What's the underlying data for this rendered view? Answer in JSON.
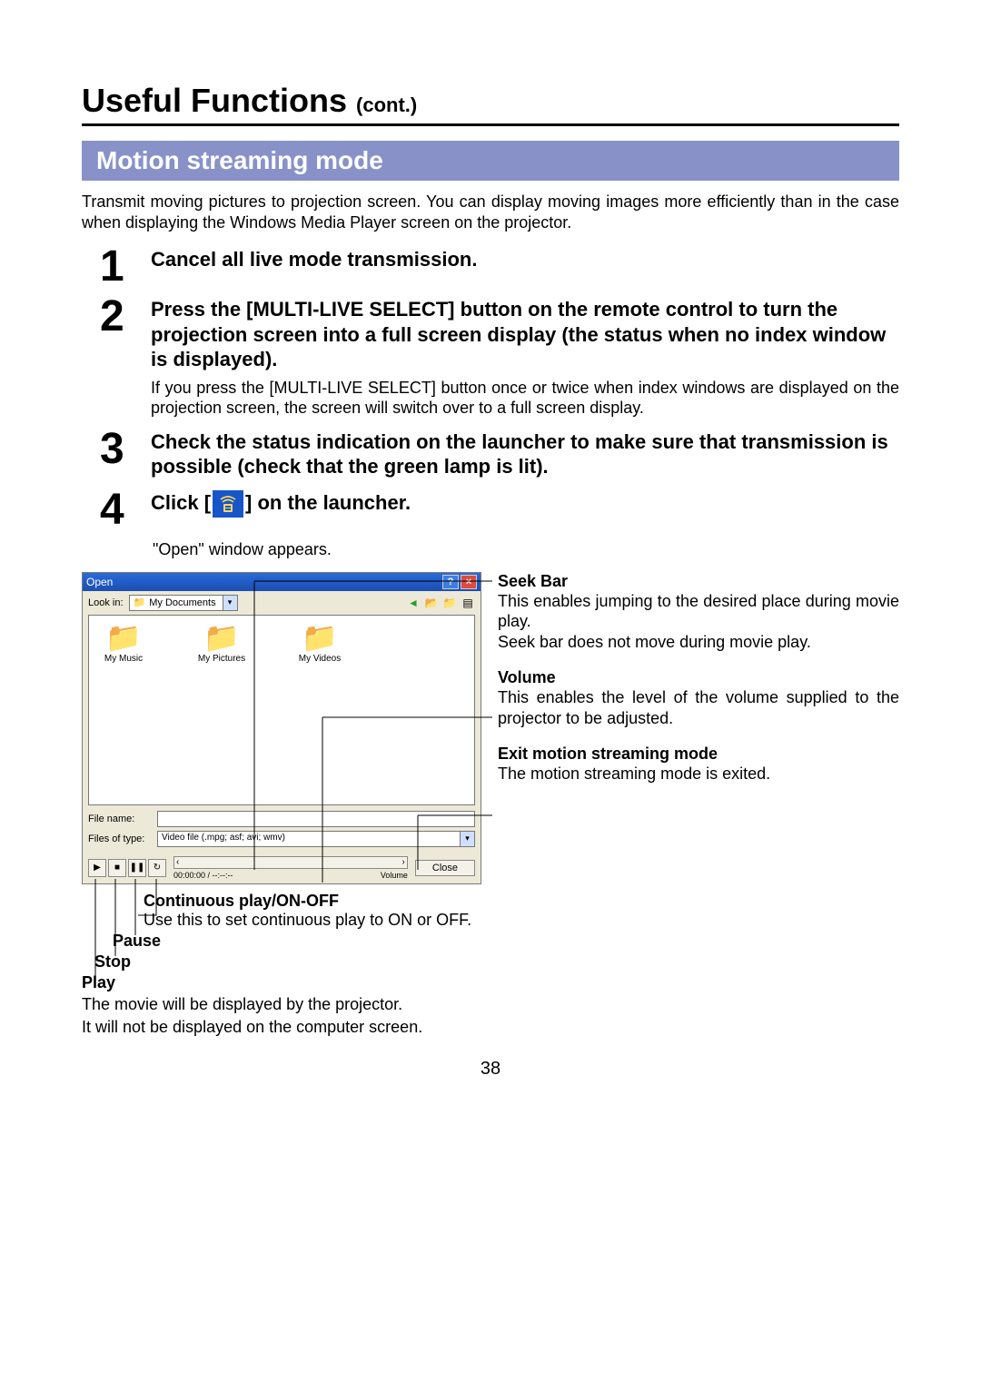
{
  "title": {
    "main": "Useful Functions",
    "cont": "(cont.)"
  },
  "section_bar": "Motion streaming mode",
  "intro": "Transmit moving pictures to projection screen. You can display moving images more efficiently than in the case when displaying the Windows Media Player screen on the projector.",
  "steps": [
    {
      "num": "1",
      "head": "Cancel all live mode transmission."
    },
    {
      "num": "2",
      "head": "Press the [MULTI-LIVE SELECT] button on the remote control to turn the projection screen into a full screen display (the status when no index window is displayed).",
      "note": "If you press the [MULTI-LIVE SELECT] button once or twice when index windows are displayed on the projection screen, the screen will switch over to a full screen display."
    },
    {
      "num": "3",
      "head": "Check the status indication on the launcher to make sure that transmission is possible (check that the green lamp is lit)."
    },
    {
      "num": "4",
      "head_pre": "Click [",
      "head_post": "] on the launcher."
    }
  ],
  "open_line": "\"Open\" window appears.",
  "dialog": {
    "title": "Open",
    "lookin_label": "Look in:",
    "lookin_value": "My Documents",
    "folders": [
      "My Music",
      "My Pictures",
      "My Videos"
    ],
    "filename_label": "File name:",
    "filename_value": "",
    "filetype_label": "Files of type:",
    "filetype_value": "Video file (.mpg; asf; avi; wmv)",
    "seek_time": "00:00:00  /  --:--:--",
    "volume_label": "Volume",
    "close_label": "Close"
  },
  "right_annotations": [
    {
      "title": "Seek Bar",
      "body": "This enables jumping to the desired place during movie play.\nSeek bar does not move during movie play."
    },
    {
      "title": "Volume",
      "body": "This enables the level of the volume supplied to the projector to be adjusted."
    },
    {
      "title": "Exit motion streaming mode",
      "body": "The motion streaming mode is exited."
    }
  ],
  "below_annotations": {
    "cont": {
      "title": "Continuous play/ON-OFF",
      "desc": "Use this to set continuous play to ON or OFF."
    },
    "pause": {
      "title": "Pause"
    },
    "stop": {
      "title": "Stop"
    },
    "play": {
      "title": "Play",
      "desc1": "The movie will be displayed by the projector.",
      "desc2": "It will not be displayed on the computer screen."
    }
  },
  "page_number": "38",
  "colors": {
    "section_bar_bg": "#8892c8",
    "icon_bg": "#1656c8",
    "dialog_bg": "#ece9d8",
    "titlebar_top": "#2a6ad9",
    "close_btn_bg": "#e04b3e"
  }
}
